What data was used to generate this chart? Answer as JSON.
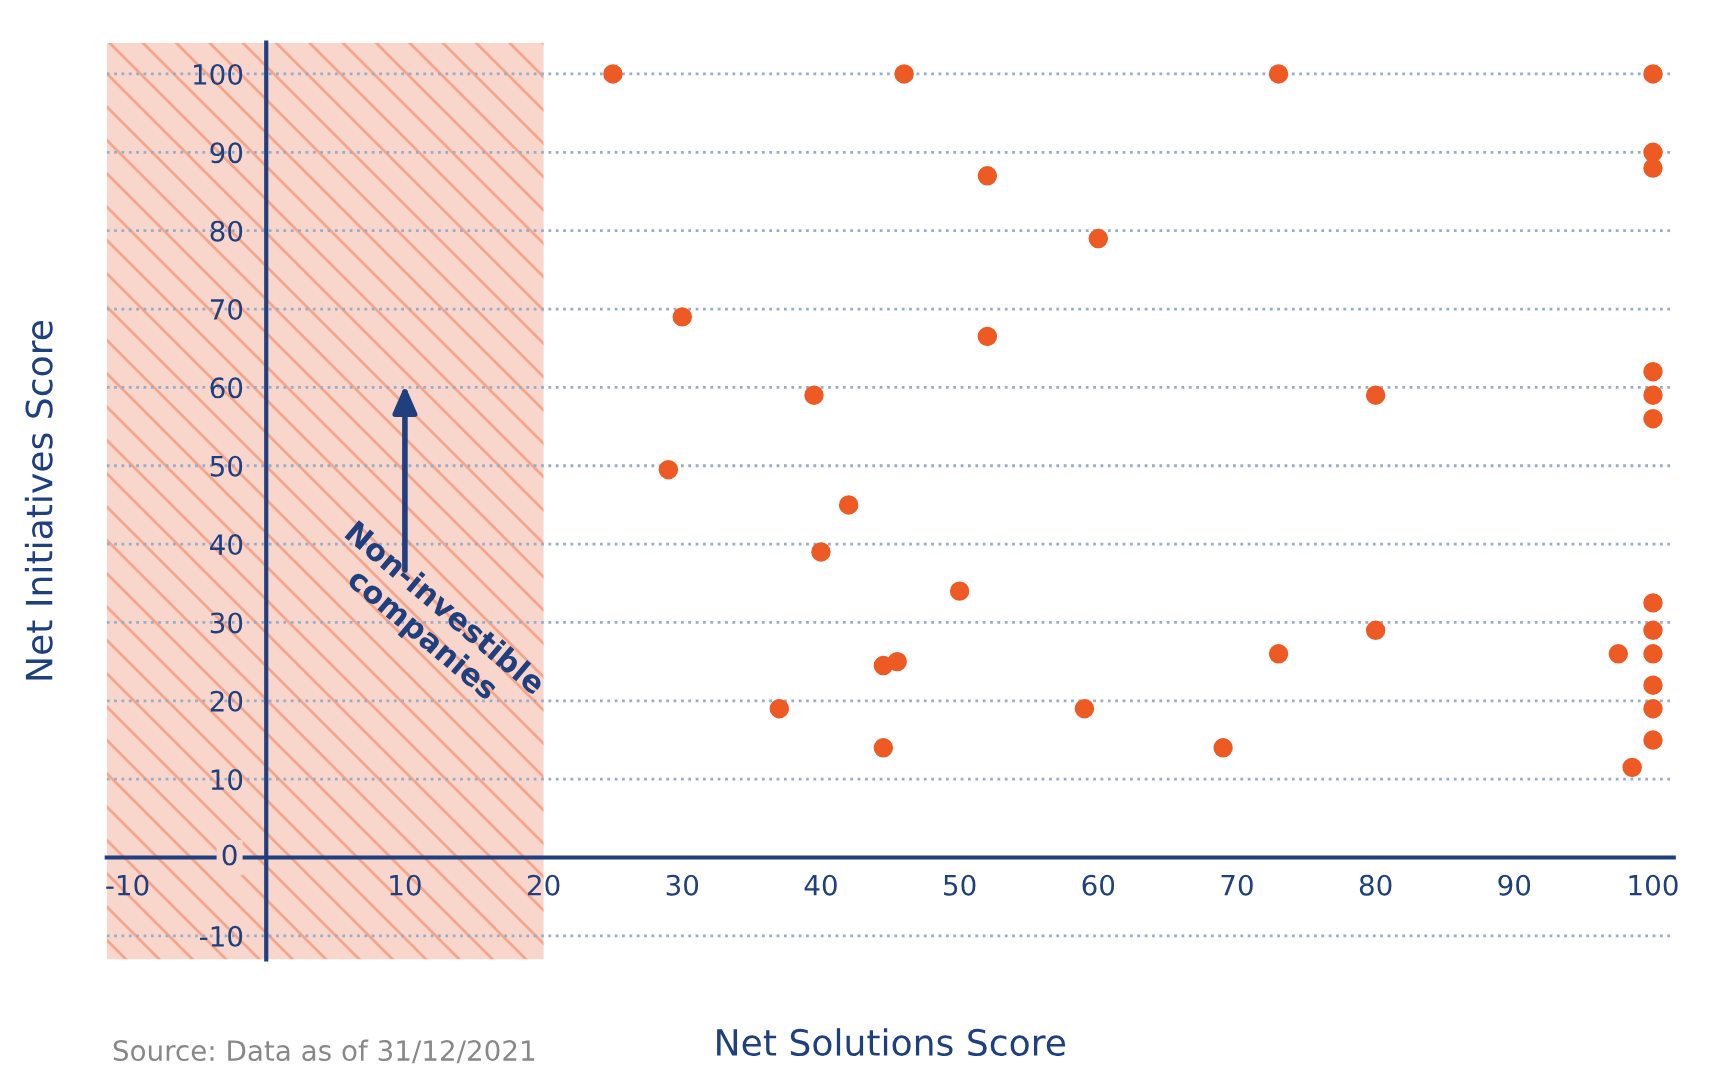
{
  "chart_data": {
    "type": "scatter",
    "xlabel": "Net Solutions Score",
    "ylabel": "Net Initiatives Score",
    "x": [
      25,
      46,
      73,
      100,
      100,
      100,
      52,
      60,
      30,
      52,
      100,
      39.5,
      80,
      100,
      100,
      29,
      42,
      40,
      50,
      100,
      100,
      80,
      73,
      97.5,
      100,
      44.5,
      45.5,
      100,
      37,
      59,
      100,
      100,
      44.5,
      69,
      98.5
    ],
    "series": [
      {
        "color": "#ee5a24",
        "values": [
          100,
          100,
          100,
          100,
          90,
          88,
          87,
          79,
          69,
          66.5,
          62,
          59,
          59,
          59,
          56,
          49.5,
          45,
          39,
          34,
          32.5,
          29,
          29,
          26,
          26,
          26,
          24.5,
          25,
          22,
          19,
          19,
          19,
          15,
          14,
          14,
          11.5
        ]
      }
    ],
    "xlim": [
      -11.5,
      101.5
    ],
    "ylim": [
      -13,
      104
    ],
    "xticks": [
      -10,
      10,
      20,
      30,
      40,
      50,
      60,
      70,
      80,
      90,
      100
    ],
    "yticks": [
      -10,
      0,
      10,
      20,
      30,
      40,
      50,
      60,
      70,
      80,
      90,
      100
    ],
    "grid": "y",
    "marker": "circle",
    "legend": false,
    "bands": [
      {
        "axis": "x",
        "from": -11.5,
        "to": 20,
        "label": "Non-investible\ncompanies",
        "color": "#f9d6cb"
      }
    ],
    "annotations": [
      "Source: Data as of 31/12/2021"
    ]
  }
}
